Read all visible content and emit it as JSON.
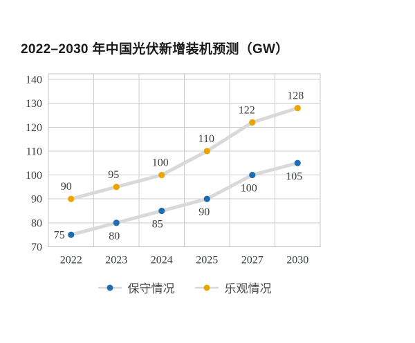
{
  "page": {
    "background": "#ffffff"
  },
  "chart_data": {
    "type": "line",
    "title": "2022–2030 年中国光伏新增装机预测（GW）",
    "categories": [
      "2022",
      "2023",
      "2024",
      "2025",
      "2027",
      "2030"
    ],
    "series": [
      {
        "name": "保守情况",
        "color": "#1e6cb2",
        "values": [
          75,
          80,
          85,
          90,
          100,
          105
        ],
        "label_positions": [
          "left",
          "below",
          "below",
          "below",
          "below",
          "below"
        ],
        "label_dx": [
          0,
          -3,
          -6,
          -4,
          -5,
          -5
        ]
      },
      {
        "name": "乐观情况",
        "color": "#eaa500",
        "values": [
          90,
          95,
          100,
          110,
          122,
          128
        ],
        "label_positions": [
          "above",
          "above",
          "above",
          "above",
          "above",
          "above"
        ],
        "label_dx": [
          -7,
          -4,
          -2,
          -1,
          -8,
          -3
        ]
      }
    ],
    "yticks": [
      70,
      80,
      90,
      100,
      110,
      120,
      130,
      140
    ],
    "ylim": [
      70,
      140
    ],
    "xlabel": "",
    "ylabel": "",
    "grid": true,
    "legend_position": "bottom",
    "connector_color": "#d9d9d9",
    "gridline_color": "#c9cdd1",
    "frame_color": "#c2c7cb",
    "tick_label_color": "#3c4043",
    "data_label_color": "#3c4043"
  }
}
